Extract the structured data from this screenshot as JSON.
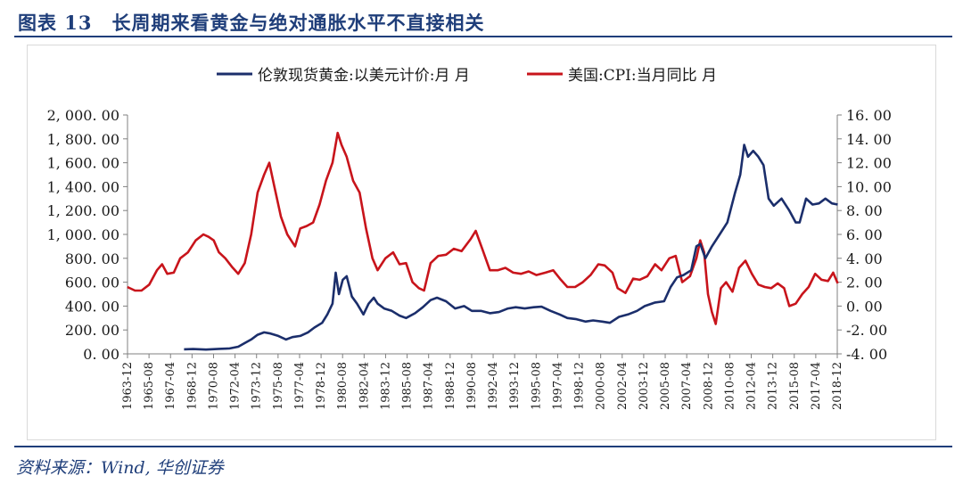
{
  "header": {
    "title": "图表 13　长周期来看黄金与绝对通胀水平不直接相关"
  },
  "footer": {
    "source": "资料来源：Wind, 华创证券"
  },
  "colors": {
    "gold": "#1b2e6b",
    "cpi": "#c8141b",
    "accent": "#1f3e7a",
    "axis": "#808080"
  },
  "chart_data": {
    "type": "line",
    "legend_position": "top-center",
    "grid": false,
    "x_tick_labels": [
      "1963-12",
      "1965-08",
      "1967-04",
      "1968-12",
      "1970-08",
      "1972-04",
      "1973-12",
      "1975-08",
      "1977-04",
      "1978-12",
      "1980-08",
      "1982-04",
      "1983-12",
      "1985-08",
      "1987-04",
      "1988-12",
      "1990-08",
      "1992-04",
      "1993-12",
      "1995-08",
      "1997-04",
      "1998-12",
      "2000-08",
      "2002-04",
      "2003-12",
      "2005-08",
      "2007-04",
      "2008-12",
      "2010-08",
      "2012-04",
      "2013-12",
      "2015-08",
      "2017-04",
      "2018-12"
    ],
    "y_left": {
      "lim": [
        0,
        2000
      ],
      "ticks": [
        "2, 000. 00",
        "1, 800. 00",
        "1, 600. 00",
        "1, 400. 00",
        "1, 200. 00",
        "1, 000. 00",
        "800. 00",
        "600. 00",
        "400. 00",
        "200. 00",
        "0. 00"
      ]
    },
    "y_right": {
      "lim": [
        -4,
        16
      ],
      "ticks": [
        "16. 00",
        "14. 00",
        "12. 00",
        "10. 00",
        "8. 00",
        "6. 00",
        "4. 00",
        "2. 00",
        "0. 00",
        "-2. 00",
        "-4. 00"
      ]
    },
    "series": [
      {
        "name": "伦敦现货黄金:以美元计价:月 月",
        "axis": "left",
        "color": "#1b2e6b",
        "x": [
          1968.3,
          1969.0,
          1970.0,
          1971.0,
          1971.8,
          1972.5,
          1973.0,
          1973.5,
          1974.0,
          1974.5,
          1975.0,
          1975.6,
          1976.2,
          1976.7,
          1977.3,
          1977.9,
          1978.4,
          1979.0,
          1979.4,
          1979.8,
          1980.05,
          1980.3,
          1980.6,
          1980.9,
          1981.3,
          1981.7,
          1982.2,
          1982.6,
          1983.0,
          1983.3,
          1983.8,
          1984.4,
          1985.0,
          1985.5,
          1986.2,
          1986.8,
          1987.4,
          1987.9,
          1988.6,
          1989.3,
          1990.0,
          1990.6,
          1991.3,
          1992.0,
          1992.7,
          1993.4,
          1994.0,
          1994.7,
          1995.4,
          1996.0,
          1996.7,
          1997.4,
          1998.0,
          1998.7,
          1999.4,
          2000.0,
          2000.7,
          2001.3,
          2002.0,
          2002.7,
          2003.4,
          2004.0,
          2004.8,
          2005.5,
          2006.0,
          2006.5,
          2007.0,
          2007.6,
          2008.0,
          2008.3,
          2008.7,
          2009.2,
          2009.8,
          2010.4,
          2011.0,
          2011.4,
          2011.7,
          2012.0,
          2012.4,
          2012.8,
          2013.2,
          2013.6,
          2014.0,
          2014.6,
          2015.2,
          2015.7,
          2016.0,
          2016.5,
          2017.0,
          2017.5,
          2018.0,
          2018.5,
          2018.95
        ],
        "values": [
          38,
          40,
          36,
          42,
          45,
          60,
          90,
          120,
          160,
          180,
          170,
          150,
          120,
          140,
          150,
          180,
          220,
          260,
          330,
          420,
          680,
          500,
          620,
          650,
          480,
          420,
          330,
          420,
          470,
          420,
          380,
          360,
          320,
          300,
          340,
          390,
          450,
          470,
          440,
          380,
          400,
          360,
          360,
          340,
          350,
          380,
          390,
          380,
          390,
          395,
          360,
          330,
          300,
          290,
          270,
          280,
          270,
          260,
          310,
          330,
          360,
          400,
          430,
          440,
          560,
          640,
          660,
          700,
          900,
          920,
          800,
          900,
          1000,
          1100,
          1350,
          1500,
          1750,
          1650,
          1700,
          1650,
          1580,
          1300,
          1240,
          1300,
          1200,
          1100,
          1100,
          1300,
          1250,
          1260,
          1300,
          1260,
          1250
        ]
      },
      {
        "name": "美国:CPI:当月同比 月",
        "axis": "right",
        "color": "#c8141b",
        "x": [
          1963.9,
          1964.5,
          1965.0,
          1965.6,
          1966.2,
          1966.6,
          1967.0,
          1967.5,
          1968.0,
          1968.6,
          1969.2,
          1969.8,
          1970.2,
          1970.6,
          1971.0,
          1971.5,
          1972.0,
          1972.5,
          1973.0,
          1973.5,
          1974.0,
          1974.5,
          1974.9,
          1975.3,
          1975.8,
          1976.3,
          1976.9,
          1977.3,
          1977.8,
          1978.3,
          1978.8,
          1979.3,
          1979.8,
          1980.2,
          1980.5,
          1980.9,
          1981.4,
          1981.9,
          1982.4,
          1982.9,
          1983.3,
          1983.9,
          1984.5,
          1985.0,
          1985.5,
          1986.0,
          1986.5,
          1986.9,
          1987.4,
          1988.0,
          1988.6,
          1989.2,
          1989.8,
          1990.5,
          1990.9,
          1991.4,
          1992.0,
          1992.6,
          1993.2,
          1993.8,
          1994.4,
          1995.0,
          1995.6,
          1996.3,
          1996.9,
          1997.5,
          1998.0,
          1998.6,
          1999.2,
          1999.8,
          2000.4,
          2000.9,
          2001.5,
          2001.9,
          2002.5,
          2003.1,
          2003.6,
          2004.2,
          2004.8,
          2005.3,
          2005.9,
          2006.4,
          2006.9,
          2007.5,
          2008.0,
          2008.3,
          2008.6,
          2008.9,
          2009.2,
          2009.5,
          2009.9,
          2010.3,
          2010.8,
          2011.3,
          2011.8,
          2012.3,
          2012.8,
          2013.3,
          2013.8,
          2014.3,
          2014.8,
          2015.2,
          2015.7,
          2016.2,
          2016.7,
          2017.2,
          2017.7,
          2018.2,
          2018.6,
          2018.95
        ],
        "values": [
          1.6,
          1.3,
          1.3,
          1.8,
          3.0,
          3.5,
          2.7,
          2.8,
          4.0,
          4.5,
          5.5,
          6.0,
          5.8,
          5.5,
          4.5,
          4.0,
          3.3,
          2.7,
          3.6,
          6.0,
          9.5,
          11.0,
          12.0,
          10.0,
          7.5,
          6.0,
          5.0,
          6.5,
          6.7,
          7.0,
          8.5,
          10.5,
          12.0,
          14.5,
          13.5,
          12.5,
          10.5,
          9.5,
          6.5,
          4.0,
          3.0,
          4.0,
          4.5,
          3.5,
          3.6,
          2.0,
          1.5,
          1.3,
          3.6,
          4.2,
          4.3,
          4.8,
          4.6,
          5.6,
          6.3,
          4.8,
          3.0,
          3.0,
          3.2,
          2.8,
          2.7,
          2.9,
          2.6,
          2.8,
          3.0,
          2.2,
          1.6,
          1.6,
          2.0,
          2.6,
          3.5,
          3.4,
          2.8,
          1.5,
          1.1,
          2.3,
          2.2,
          2.5,
          3.5,
          3.0,
          4.0,
          4.2,
          2.0,
          2.5,
          4.0,
          5.5,
          4.5,
          1.0,
          -0.5,
          -1.5,
          1.5,
          2.0,
          1.2,
          3.2,
          3.8,
          2.7,
          1.8,
          1.6,
          1.5,
          1.9,
          1.5,
          0.0,
          0.2,
          1.0,
          1.6,
          2.7,
          2.2,
          2.1,
          2.8,
          1.9
        ]
      }
    ]
  }
}
